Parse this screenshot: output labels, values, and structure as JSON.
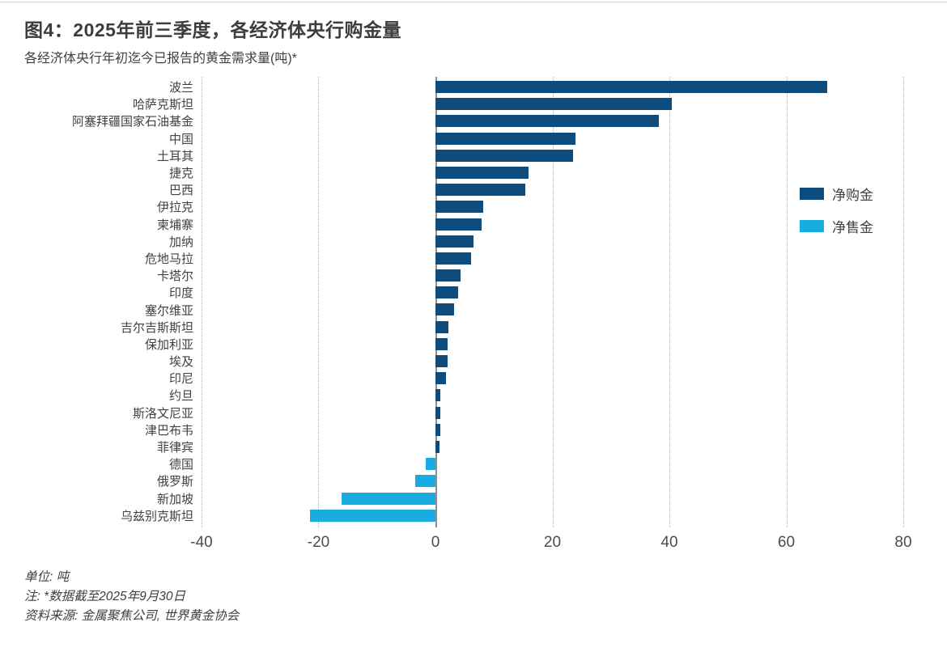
{
  "colors": {
    "positive": "#0E4C7E",
    "negative": "#17ADE0",
    "grid_dotted": "#ababab",
    "zero_line": "#8f8f8f",
    "text": "#3f3f3f"
  },
  "legend": {
    "net_purchases": "净购金",
    "net_sales": "净售金"
  },
  "footer": {
    "unit": "单位: 吨",
    "note": "注: *数据截至2025年9月30日",
    "source": "资料来源: 金属聚焦公司, 世界黄金协会"
  },
  "chart_data": {
    "type": "bar",
    "orientation": "horizontal",
    "title": "图4：2025年前三季度，各经济体央行购金量",
    "subtitle": "各经济体央行年初迄今已报告的黄金需求量(吨)*",
    "unit": "吨",
    "categories": [
      "波兰",
      "哈萨克斯坦",
      "阿塞拜疆国家石油基金",
      "中国",
      "土耳其",
      "捷克",
      "巴西",
      "伊拉克",
      "柬埔寨",
      "加纳",
      "危地马拉",
      "卡塔尔",
      "印度",
      "塞尔维亚",
      "吉尔吉斯斯坦",
      "保加利亚",
      "埃及",
      "印尼",
      "约旦",
      "斯洛文尼亚",
      "津巴布韦",
      "菲律宾",
      "德国",
      "俄罗斯",
      "新加坡",
      "乌兹别克斯坦"
    ],
    "values": [
      67.0,
      40.4,
      38.2,
      24.0,
      23.6,
      15.9,
      15.4,
      8.2,
      7.9,
      6.5,
      6.1,
      4.3,
      3.9,
      3.2,
      2.2,
      2.1,
      2.1,
      1.8,
      0.8,
      0.9,
      0.9,
      0.7,
      -1.6,
      -3.4,
      -16.1,
      -21.5
    ],
    "series": [
      {
        "name": "净购金",
        "rule": "values >= 0",
        "color": "#0E4C7E"
      },
      {
        "name": "净售金",
        "rule": "values < 0",
        "color": "#17ADE0"
      }
    ],
    "xlim": [
      -40,
      80
    ],
    "x_ticks": [
      -40,
      -20,
      0,
      20,
      40,
      60,
      80
    ],
    "grid": "vertical dotted at ticks, solid line at 0",
    "legend_position": "right"
  }
}
